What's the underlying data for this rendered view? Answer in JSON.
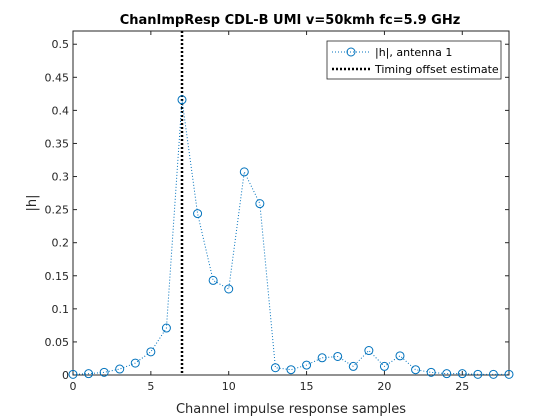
{
  "chart_data": {
    "type": "line",
    "title": "ChanImpResp CDL-B UMI v=50kmh fc=5.9 GHz",
    "xlabel": "Channel impulse response samples",
    "ylabel": "|h|",
    "xlim": [
      0,
      28
    ],
    "ylim": [
      0,
      0.52
    ],
    "xticks": [
      0,
      5,
      10,
      15,
      20,
      25
    ],
    "xtick_labels": [
      "0",
      "5",
      "10",
      "15",
      "20",
      "25"
    ],
    "yticks": [
      0,
      0.05,
      0.1,
      0.15,
      0.2,
      0.25,
      0.3,
      0.35,
      0.4,
      0.45,
      0.5
    ],
    "ytick_labels": [
      "0",
      "0.05",
      "0.1",
      "0.15",
      "0.2",
      "0.25",
      "0.3",
      "0.35",
      "0.4",
      "0.45",
      "0.5"
    ],
    "grid": false,
    "legend_position": "top-right",
    "series": [
      {
        "name": "|h|, antenna 1",
        "color": "#0072BD",
        "line_style": "dotted",
        "marker": "circle",
        "x": [
          0,
          1,
          2,
          3,
          4,
          5,
          6,
          7,
          8,
          9,
          10,
          11,
          12,
          13,
          14,
          15,
          16,
          17,
          18,
          19,
          20,
          21,
          22,
          23,
          24,
          25,
          26,
          27,
          28
        ],
        "values": [
          0.001,
          0.002,
          0.004,
          0.009,
          0.018,
          0.035,
          0.071,
          0.416,
          0.244,
          0.143,
          0.13,
          0.307,
          0.259,
          0.011,
          0.008,
          0.015,
          0.026,
          0.028,
          0.013,
          0.037,
          0.013,
          0.029,
          0.008,
          0.004,
          0.002,
          0.002,
          0.001,
          0.001,
          0.001
        ]
      }
    ],
    "vertical_line": {
      "name": "Timing offset estimate",
      "x": 7,
      "color": "#000000",
      "line_style": "dotted-thick"
    }
  }
}
